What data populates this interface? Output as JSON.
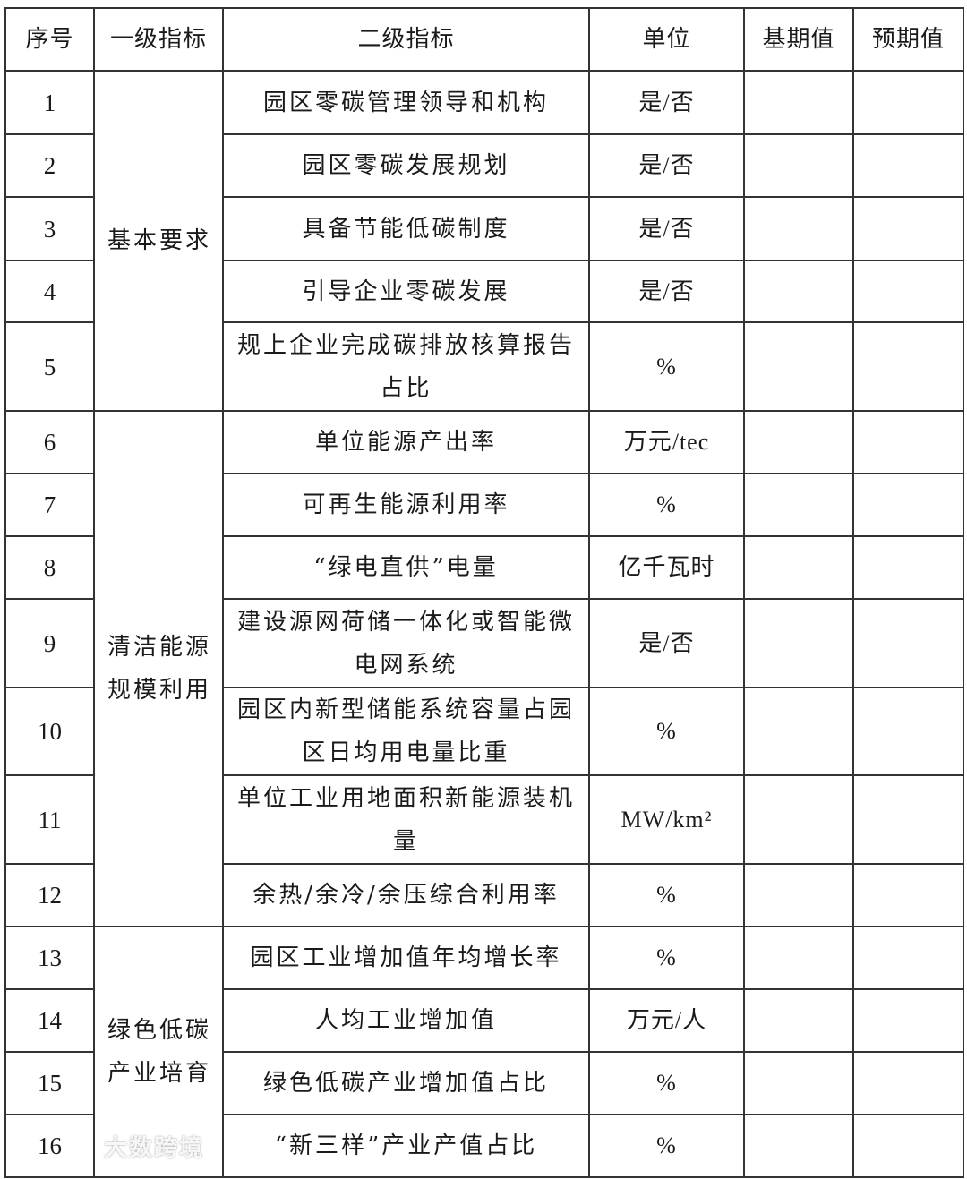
{
  "headers": [
    "序号",
    "一级指标",
    "二级指标",
    "单位",
    "基期值",
    "预期值"
  ],
  "groups": [
    "基本要求",
    "清洁能源规模利用",
    "绿色低碳产业培育"
  ],
  "rows": [
    {
      "no": "1",
      "indicator": "园区零碳管理领导和机构",
      "unit": "是/否"
    },
    {
      "no": "2",
      "indicator": "园区零碳发展规划",
      "unit": "是/否"
    },
    {
      "no": "3",
      "indicator": "具备节能低碳制度",
      "unit": "是/否"
    },
    {
      "no": "4",
      "indicator": "引导企业零碳发展",
      "unit": "是/否"
    },
    {
      "no": "5",
      "indicator": "规上企业完成碳排放核算报告占比",
      "unit": "%"
    },
    {
      "no": "6",
      "indicator": "单位能源产出率",
      "unit": "万元/tec"
    },
    {
      "no": "7",
      "indicator": "可再生能源利用率",
      "unit": "%"
    },
    {
      "no": "8",
      "indicator": "“绿电直供”电量",
      "unit": "亿千瓦时"
    },
    {
      "no": "9",
      "indicator": "建设源网荷储一体化或智能微电网系统",
      "unit": "是/否"
    },
    {
      "no": "10",
      "indicator": "园区内新型储能系统容量占园区日均用电量比重",
      "unit": "%"
    },
    {
      "no": "11",
      "indicator": "单位工业用地面积新能源装机量",
      "unit": "MW/km²"
    },
    {
      "no": "12",
      "indicator": "余热/余冷/余压综合利用率",
      "unit": "%"
    },
    {
      "no": "13",
      "indicator": "园区工业增加值年均增长率",
      "unit": "%"
    },
    {
      "no": "14",
      "indicator": "人均工业增加值",
      "unit": "万元/人"
    },
    {
      "no": "15",
      "indicator": "绿色低碳产业增加值占比",
      "unit": "%"
    },
    {
      "no": "16",
      "indicator": "“新三样”产业产值占比",
      "unit": "%"
    }
  ],
  "watermark": "大数跨境"
}
